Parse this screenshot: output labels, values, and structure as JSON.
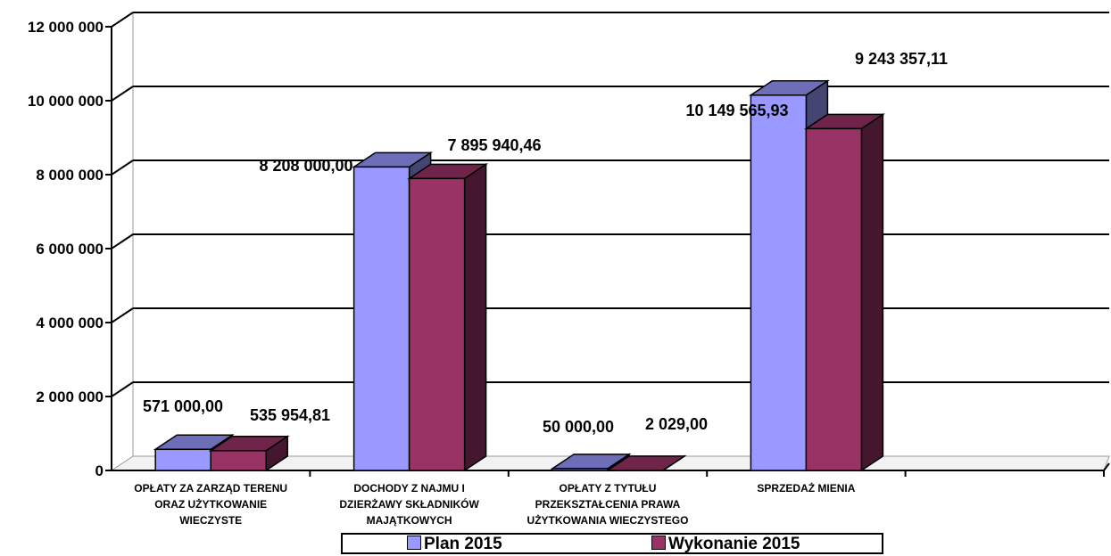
{
  "chart_data": {
    "type": "bar",
    "categories": [
      [
        "OPŁATY ZA ZARZĄD TERENU",
        "ORAZ UŻYTKOWANIE",
        "WIECZYSTE"
      ],
      [
        "DOCHODY Z NAJMU I",
        "DZIERŻAWY SKŁADNIKÓW",
        "MAJĄTKOWYCH"
      ],
      [
        "OPŁATY Z TYTUŁU",
        "PRZEKSZTAŁCENIA PRAWA",
        "UŻYTKOWANIA WIECZYSTEGO"
      ],
      [
        "SPRZEDAŻ MIENIA"
      ]
    ],
    "series": [
      {
        "name": "Plan 2015",
        "color": "#9999FF",
        "values": [
          571000,
          8208000,
          50000,
          10149565.93
        ],
        "labels": [
          "571 000,00",
          "8 208 000,00",
          "50 000,00",
          "10 149 565,93"
        ]
      },
      {
        "name": "Wykonanie 2015",
        "color": "#993366",
        "values": [
          535954.81,
          7895940.46,
          2029,
          9243357.11
        ],
        "labels": [
          "535 954,81",
          "7 895 940,46",
          "2 029,00",
          "9 243 357,11"
        ]
      }
    ],
    "yticks": [
      "0",
      "2 000 000",
      "4 000 000",
      "6 000 000",
      "8 000 000",
      "10 000 000",
      "12 000 000"
    ],
    "ylim": [
      0,
      12000000
    ],
    "grid": true,
    "legend_position": "bottom"
  }
}
